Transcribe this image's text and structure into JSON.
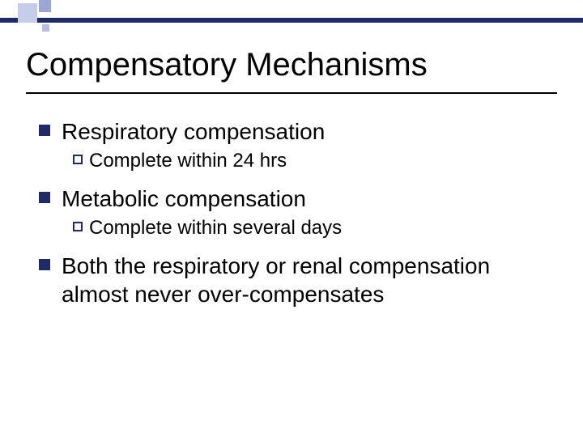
{
  "theme": {
    "accent": "#1f2b66",
    "square_light": "#c6cde8",
    "square_mid": "#9aa6d4",
    "square_small": "#b6bfe0",
    "background": "#ffffff",
    "text_color": "#000000",
    "title_fontsize": 40,
    "body_fontsize": 28,
    "sub_fontsize": 24
  },
  "title": "Compensatory Mechanisms",
  "bullets": [
    {
      "text": "Respiratory compensation",
      "children": [
        {
          "text": "Complete within 24 hrs"
        }
      ]
    },
    {
      "text": "Metabolic compensation",
      "children": [
        {
          "text": "Complete within several days"
        }
      ]
    },
    {
      "text": "Both the respiratory or renal compensation almost never over-compensates",
      "children": []
    }
  ]
}
